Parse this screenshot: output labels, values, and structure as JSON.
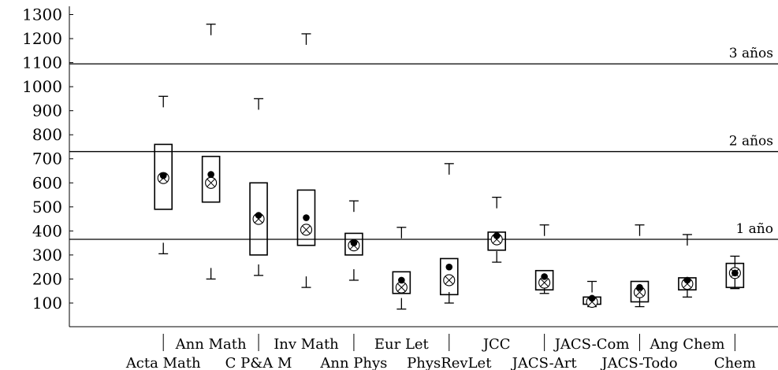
{
  "chart_data": {
    "type": "box",
    "title": "",
    "xlabel": "",
    "ylabel": "",
    "ylim": [
      0,
      1300
    ],
    "yticks": [
      100,
      200,
      300,
      400,
      500,
      600,
      700,
      800,
      900,
      1000,
      1100,
      1200,
      1300
    ],
    "grid": false,
    "reference_lines": [
      {
        "y": 365,
        "label": "1 año"
      },
      {
        "y": 730,
        "label": "2 años"
      },
      {
        "y": 1095,
        "label": "3 años"
      }
    ],
    "categories": [
      "Acta Math",
      "Ann Math",
      "C P&A M",
      "Inv Math",
      "Ann Phys",
      "Eur Let",
      "PhysRevLet",
      "JCC",
      "JACS-Art",
      "JACS-Com",
      "JACS-Todo",
      "Ang Chem",
      "Chem"
    ],
    "series": [
      {
        "whisker_low": 305,
        "q1": 490,
        "q3": 760,
        "whisker_high": 960,
        "mean": 630,
        "median": 620
      },
      {
        "whisker_low": 200,
        "q1": 520,
        "q3": 710,
        "whisker_high": 1260,
        "mean": 635,
        "median": 600
      },
      {
        "whisker_low": 215,
        "q1": 300,
        "q3": 600,
        "whisker_high": 950,
        "mean": 465,
        "median": 450
      },
      {
        "whisker_low": 165,
        "q1": 340,
        "q3": 570,
        "whisker_high": 1220,
        "mean": 455,
        "median": 405
      },
      {
        "whisker_low": 195,
        "q1": 300,
        "q3": 390,
        "whisker_high": 525,
        "mean": 350,
        "median": 340
      },
      {
        "whisker_low": 75,
        "q1": 140,
        "q3": 230,
        "whisker_high": 415,
        "mean": 195,
        "median": 165
      },
      {
        "whisker_low": 100,
        "q1": 135,
        "q3": 285,
        "whisker_high": 680,
        "mean": 250,
        "median": 195
      },
      {
        "whisker_low": 270,
        "q1": 320,
        "q3": 395,
        "whisker_high": 540,
        "mean": 380,
        "median": 365
      },
      {
        "whisker_low": 140,
        "q1": 155,
        "q3": 235,
        "whisker_high": 425,
        "mean": 210,
        "median": 185
      },
      {
        "whisker_low": 85,
        "q1": 95,
        "q3": 125,
        "whisker_high": 190,
        "mean": 120,
        "median": 105
      },
      {
        "whisker_low": 85,
        "q1": 105,
        "q3": 190,
        "whisker_high": 425,
        "mean": 165,
        "median": 145
      },
      {
        "whisker_low": 125,
        "q1": 155,
        "q3": 205,
        "whisker_high": 385,
        "mean": 195,
        "median": 180
      },
      {
        "whisker_low": 160,
        "q1": 165,
        "q3": 265,
        "whisker_high": 295,
        "mean": 225,
        "median": 225
      }
    ]
  }
}
